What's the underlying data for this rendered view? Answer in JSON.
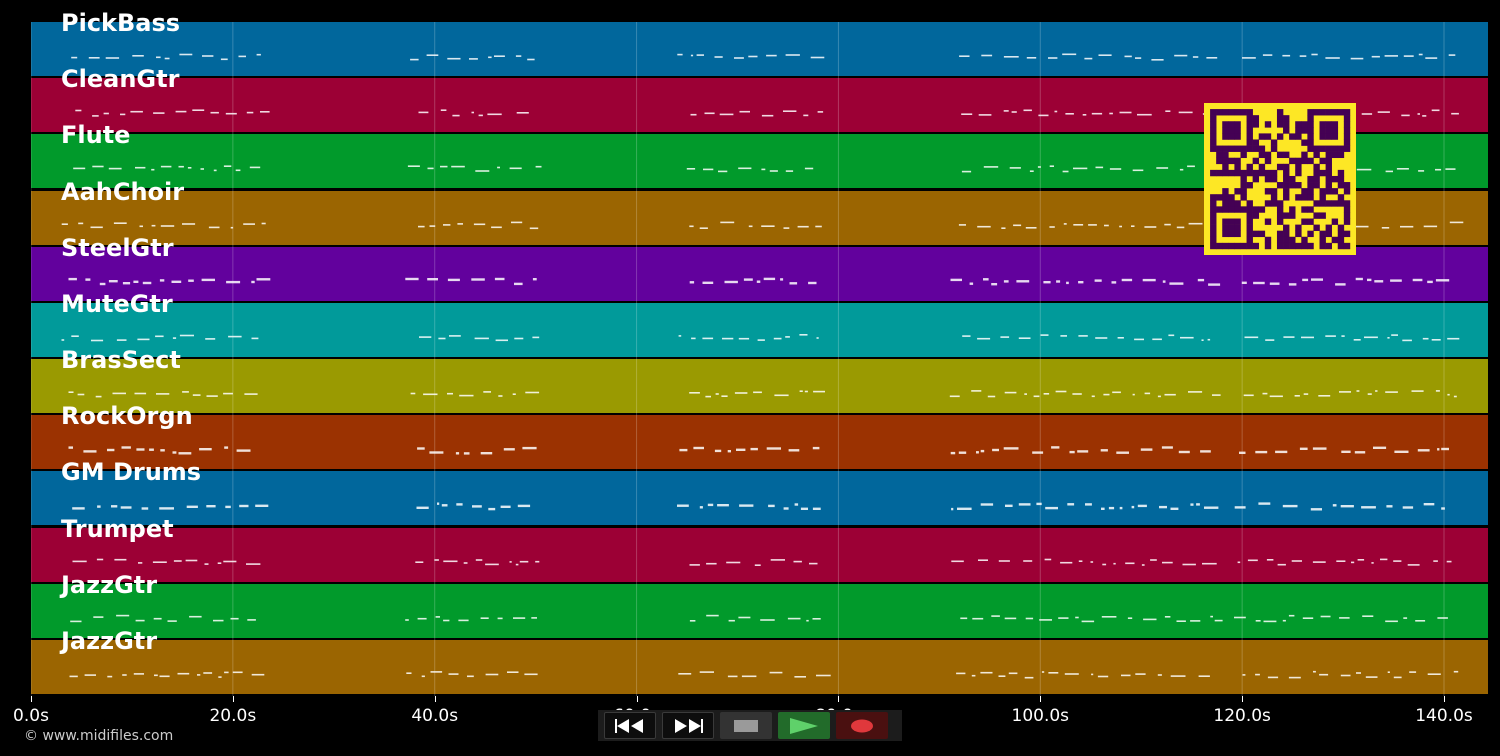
{
  "tracks": [
    {
      "name": "PickBass",
      "color": "#01679c"
    },
    {
      "name": "CleanGtr",
      "color": "#9c0035"
    },
    {
      "name": "Flute",
      "color": "#019a2b"
    },
    {
      "name": "AahChoir",
      "color": "#9b6501"
    },
    {
      "name": "SteelGtr",
      "color": "#62019d"
    },
    {
      "name": "MuteGtr",
      "color": "#019a9a"
    },
    {
      "name": "BrasSect",
      "color": "#9a9a01"
    },
    {
      "name": "RockOrgn",
      "color": "#9b3201"
    },
    {
      "name": "GM Drums",
      "color": "#01679c"
    },
    {
      "name": "Trumpet",
      "color": "#9c0035"
    },
    {
      "name": "JazzGtr",
      "color": "#019a2b"
    },
    {
      "name": "JazzGtr",
      "color": "#9b6501"
    }
  ],
  "timeline": {
    "unit": "s",
    "max_seconds": 144.5,
    "ticks": [
      "0.0s",
      "20.0s",
      "40.0s",
      "60.0s",
      "80.0s",
      "100.0s",
      "120.0s",
      "140.0s"
    ]
  },
  "copyright": "© www.midifiles.com",
  "transport": {
    "rewind_icon": "rewind-icon",
    "forward_icon": "fast-forward-icon",
    "stop_icon": "stop-icon",
    "play_icon": "play-icon",
    "record_icon": "record-icon"
  },
  "qr_code": {
    "color": "#fde725",
    "background": "#440154"
  }
}
